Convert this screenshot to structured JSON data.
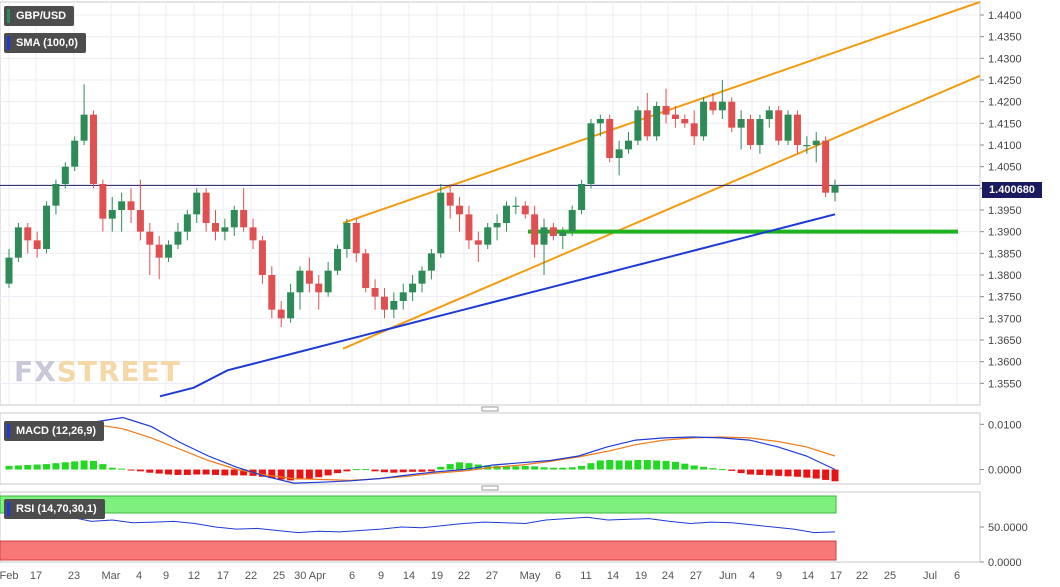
{
  "chart_data": [
    {
      "type": "candlestick",
      "title": "GBP/USD",
      "series_label": "SMA (100,0)",
      "last_price": "1.400680",
      "ylim": [
        1.35,
        1.443
      ],
      "y_ticks": [
        "1.4400",
        "1.4350",
        "1.4300",
        "1.4250",
        "1.4200",
        "1.4150",
        "1.4100",
        "1.4050",
        "1.4000",
        "1.3950",
        "1.3900",
        "1.3850",
        "1.3800",
        "1.3750",
        "1.3700",
        "1.3650",
        "1.3600",
        "1.3550"
      ],
      "x_labels": [
        "Feb",
        "17",
        "23",
        "Mar",
        "4",
        "9",
        "12",
        "17",
        "22",
        "25",
        "30 Apr",
        "6",
        "9",
        "14",
        "19",
        "22",
        "27",
        "May",
        "6",
        "11",
        "14",
        "19",
        "24",
        "27",
        "Jun",
        "4",
        "9",
        "14",
        "17",
        "22",
        "25",
        "Jul",
        "6"
      ],
      "candles": [
        [
          1.378,
          1.386,
          1.377,
          1.384
        ],
        [
          1.384,
          1.392,
          1.383,
          1.391
        ],
        [
          1.391,
          1.392,
          1.385,
          1.388
        ],
        [
          1.388,
          1.39,
          1.384,
          1.386
        ],
        [
          1.386,
          1.397,
          1.385,
          1.396
        ],
        [
          1.396,
          1.402,
          1.394,
          1.401
        ],
        [
          1.401,
          1.406,
          1.4,
          1.405
        ],
        [
          1.405,
          1.412,
          1.404,
          1.411
        ],
        [
          1.411,
          1.424,
          1.41,
          1.417
        ],
        [
          1.417,
          1.418,
          1.4,
          1.401
        ],
        [
          1.401,
          1.402,
          1.39,
          1.393
        ],
        [
          1.393,
          1.398,
          1.39,
          1.395
        ],
        [
          1.395,
          1.399,
          1.39,
          1.397
        ],
        [
          1.397,
          1.4,
          1.392,
          1.395
        ],
        [
          1.395,
          1.402,
          1.388,
          1.39
        ],
        [
          1.39,
          1.392,
          1.38,
          1.387
        ],
        [
          1.387,
          1.389,
          1.379,
          1.384
        ],
        [
          1.384,
          1.388,
          1.383,
          1.387
        ],
        [
          1.387,
          1.392,
          1.386,
          1.39
        ],
        [
          1.39,
          1.395,
          1.388,
          1.394
        ],
        [
          1.394,
          1.4,
          1.392,
          1.399
        ],
        [
          1.399,
          1.4,
          1.39,
          1.392
        ],
        [
          1.392,
          1.395,
          1.388,
          1.39
        ],
        [
          1.39,
          1.393,
          1.388,
          1.391
        ],
        [
          1.391,
          1.396,
          1.389,
          1.395
        ],
        [
          1.395,
          1.4,
          1.39,
          1.391
        ],
        [
          1.391,
          1.393,
          1.386,
          1.388
        ],
        [
          1.388,
          1.389,
          1.378,
          1.38
        ],
        [
          1.38,
          1.382,
          1.37,
          1.372
        ],
        [
          1.372,
          1.374,
          1.368,
          1.37
        ],
        [
          1.37,
          1.378,
          1.369,
          1.376
        ],
        [
          1.376,
          1.382,
          1.372,
          1.381
        ],
        [
          1.381,
          1.384,
          1.376,
          1.378
        ],
        [
          1.378,
          1.38,
          1.372,
          1.376
        ],
        [
          1.376,
          1.383,
          1.375,
          1.381
        ],
        [
          1.381,
          1.387,
          1.38,
          1.386
        ],
        [
          1.386,
          1.393,
          1.384,
          1.392
        ],
        [
          1.392,
          1.393,
          1.383,
          1.385
        ],
        [
          1.385,
          1.386,
          1.376,
          1.377
        ],
        [
          1.377,
          1.379,
          1.372,
          1.375
        ],
        [
          1.375,
          1.377,
          1.37,
          1.372
        ],
        [
          1.372,
          1.376,
          1.37,
          1.374
        ],
        [
          1.374,
          1.378,
          1.372,
          1.376
        ],
        [
          1.376,
          1.38,
          1.374,
          1.378
        ],
        [
          1.378,
          1.382,
          1.376,
          1.381
        ],
        [
          1.381,
          1.386,
          1.379,
          1.385
        ],
        [
          1.385,
          1.401,
          1.384,
          1.399
        ],
        [
          1.399,
          1.401,
          1.393,
          1.396
        ],
        [
          1.396,
          1.398,
          1.39,
          1.394
        ],
        [
          1.394,
          1.396,
          1.386,
          1.388
        ],
        [
          1.388,
          1.39,
          1.383,
          1.387
        ],
        [
          1.387,
          1.392,
          1.386,
          1.391
        ],
        [
          1.391,
          1.394,
          1.388,
          1.392
        ],
        [
          1.392,
          1.397,
          1.39,
          1.396
        ],
        [
          1.396,
          1.398,
          1.394,
          1.396
        ],
        [
          1.396,
          1.397,
          1.393,
          1.394
        ],
        [
          1.394,
          1.396,
          1.384,
          1.387
        ],
        [
          1.387,
          1.393,
          1.38,
          1.391
        ],
        [
          1.391,
          1.392,
          1.388,
          1.389
        ],
        [
          1.389,
          1.391,
          1.386,
          1.39
        ],
        [
          1.39,
          1.396,
          1.389,
          1.395
        ],
        [
          1.395,
          1.402,
          1.394,
          1.401
        ],
        [
          1.401,
          1.416,
          1.4,
          1.415
        ],
        [
          1.415,
          1.417,
          1.412,
          1.416
        ],
        [
          1.416,
          1.417,
          1.406,
          1.407
        ],
        [
          1.407,
          1.411,
          1.403,
          1.409
        ],
        [
          1.409,
          1.413,
          1.408,
          1.411
        ],
        [
          1.411,
          1.419,
          1.41,
          1.418
        ],
        [
          1.418,
          1.422,
          1.411,
          1.412
        ],
        [
          1.412,
          1.42,
          1.411,
          1.419
        ],
        [
          1.419,
          1.423,
          1.415,
          1.417
        ],
        [
          1.417,
          1.419,
          1.414,
          1.416
        ],
        [
          1.416,
          1.417,
          1.414,
          1.415
        ],
        [
          1.415,
          1.418,
          1.41,
          1.412
        ],
        [
          1.412,
          1.421,
          1.411,
          1.42
        ],
        [
          1.42,
          1.422,
          1.417,
          1.418
        ],
        [
          1.418,
          1.425,
          1.416,
          1.42
        ],
        [
          1.42,
          1.421,
          1.413,
          1.414
        ],
        [
          1.414,
          1.418,
          1.409,
          1.416
        ],
        [
          1.416,
          1.417,
          1.409,
          1.41
        ],
        [
          1.41,
          1.417,
          1.408,
          1.416
        ],
        [
          1.416,
          1.419,
          1.414,
          1.418
        ],
        [
          1.418,
          1.419,
          1.41,
          1.411
        ],
        [
          1.411,
          1.418,
          1.41,
          1.417
        ],
        [
          1.417,
          1.418,
          1.408,
          1.41
        ],
        [
          1.41,
          1.412,
          1.408,
          1.41
        ],
        [
          1.41,
          1.413,
          1.406,
          1.411
        ],
        [
          1.411,
          1.412,
          1.398,
          1.399
        ],
        [
          1.399,
          1.402,
          1.397,
          1.4007
        ]
      ],
      "sma_100": [
        [
          1.352,
          1.3522
        ],
        [
          1.354,
          1.356
        ],
        [
          1.358,
          1.359
        ],
        [
          1.36,
          1.361
        ],
        [
          1.362,
          1.363
        ],
        [
          1.364,
          1.365
        ],
        [
          1.366,
          1.367
        ],
        [
          1.368,
          1.369
        ],
        [
          1.37,
          1.371
        ],
        [
          1.372,
          1.373
        ],
        [
          1.374,
          1.375
        ],
        [
          1.376,
          1.377
        ],
        [
          1.378,
          1.379
        ],
        [
          1.38,
          1.381
        ],
        [
          1.382,
          1.383
        ],
        [
          1.384,
          1.385
        ],
        [
          1.386,
          1.387
        ],
        [
          1.388,
          1.389
        ],
        [
          1.39,
          1.391
        ],
        [
          1.392,
          1.393
        ],
        [
          1.394,
          1.394
        ]
      ],
      "channel_lines": [
        [
          1.392,
          1.443
        ],
        [
          1.363,
          1.426
        ]
      ],
      "support_level": 1.39
    },
    {
      "type": "line",
      "title": "MACD (12,26,9)",
      "y_ticks": [
        "0.0100",
        "0.0000"
      ],
      "histogram": [
        0.0008,
        0.0009,
        0.001,
        0.0011,
        0.0012,
        0.0014,
        0.0016,
        0.0018,
        0.002,
        0.0019,
        0.0012,
        0.0004,
        0.0002,
        -0.0001,
        -0.0004,
        -0.0007,
        -0.0009,
        -0.0011,
        -0.0012,
        -0.0012,
        -0.0011,
        -0.0011,
        -0.0012,
        -0.0013,
        -0.0013,
        -0.0013,
        -0.0014,
        -0.0016,
        -0.0019,
        -0.0022,
        -0.0024,
        -0.0022,
        -0.002,
        -0.0017,
        -0.0013,
        -0.0008,
        -0.0004,
        0.0001,
        0.0001,
        -0.0004,
        -0.0006,
        -0.0007,
        -0.0006,
        -0.0005,
        -0.0005,
        -0.0004,
        0.0006,
        0.0012,
        0.0016,
        0.0014,
        0.0011,
        0.0009,
        0.0008,
        0.0007,
        0.0007,
        0.0008,
        0.0007,
        0.0005,
        0.0004,
        0.0004,
        0.0005,
        0.0008,
        0.0014,
        0.002,
        0.0021,
        0.002,
        0.002,
        0.0021,
        0.0021,
        0.002,
        0.0019,
        0.0017,
        0.0013,
        0.0009,
        0.0006,
        0.0003,
        0.0001,
        -0.0003,
        -0.0008,
        -0.0011,
        -0.0012,
        -0.0013,
        -0.0014,
        -0.0015,
        -0.0016,
        -0.0018,
        -0.002,
        -0.0023,
        -0.0026
      ],
      "macd_line": [
        0.007,
        0.008,
        0.009,
        0.0105,
        0.0115,
        0.0095,
        0.006,
        0.003,
        0.0005,
        -0.0015,
        -0.003,
        -0.0028,
        -0.0025,
        -0.002,
        -0.0012,
        -0.0005,
        0.0,
        0.001,
        0.0015,
        0.002,
        0.003,
        0.005,
        0.0065,
        0.007,
        0.0072,
        0.007,
        0.0065,
        0.005,
        0.003,
        0.0
      ],
      "signal_line": [
        0.009,
        0.01,
        0.0105,
        0.01,
        0.009,
        0.007,
        0.0045,
        0.002,
        0.0,
        -0.0012,
        -0.002,
        -0.0022,
        -0.0024,
        -0.002,
        -0.0015,
        -0.0008,
        -0.0003,
        0.0005,
        0.001,
        0.0018,
        0.0028,
        0.004,
        0.0055,
        0.0065,
        0.007,
        0.0072,
        0.007,
        0.0062,
        0.005,
        0.003
      ]
    },
    {
      "type": "line",
      "title": "RSI (14,70,30,1)",
      "y_ticks": [
        "50.0000",
        "0.0000"
      ],
      "ylim": [
        0,
        100
      ],
      "overbought": 70,
      "oversold": 30,
      "values": [
        62,
        66,
        72,
        64,
        58,
        60,
        56,
        57,
        58,
        55,
        50,
        47,
        48,
        45,
        42,
        44,
        43,
        45,
        47,
        50,
        49,
        52,
        55,
        57,
        56,
        55,
        60,
        62,
        64,
        60,
        61,
        62,
        58,
        55,
        57,
        56,
        53,
        50,
        47,
        42,
        43
      ]
    }
  ]
}
